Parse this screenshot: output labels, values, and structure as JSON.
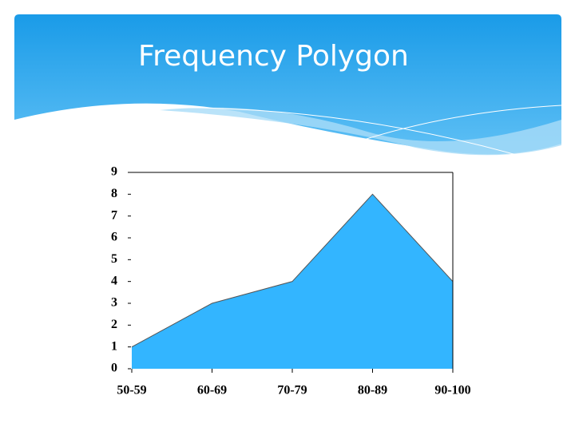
{
  "chart_data": {
    "type": "area",
    "title": "Frequency Polygon",
    "categories": [
      "50-59",
      "60-69",
      "70-79",
      "80-89",
      "90-100"
    ],
    "values": [
      1,
      3,
      4,
      8,
      4
    ],
    "color": "#33b5ff",
    "ylim": [
      0,
      9
    ],
    "yticks": [
      0,
      1,
      2,
      3,
      4,
      5,
      6,
      7,
      8,
      9
    ]
  }
}
